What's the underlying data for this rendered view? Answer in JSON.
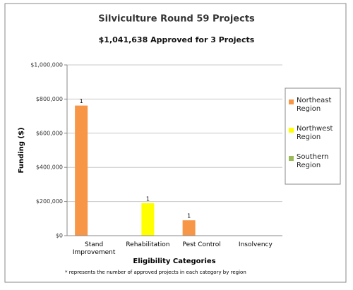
{
  "chart_data": {
    "type": "bar",
    "title": "Silviculture Round 59 Projects",
    "subtitle": "$1,041,638 Approved for 3 Projects",
    "x_label": "Eligibility Categories",
    "y_label": "Funding ($)",
    "footnote": "* represents the number of approved projects in each category by region",
    "categories": [
      "Stand Improvement",
      "Rehabilitation",
      "Pest Control",
      "Insolvency"
    ],
    "series": [
      {
        "name": "Northeast Region",
        "color": "#f79646",
        "values": [
          762000,
          0,
          90000,
          0
        ],
        "counts": [
          1,
          null,
          1,
          null
        ]
      },
      {
        "name": "Northwest Region",
        "color": "#ffff00",
        "values": [
          0,
          190000,
          0,
          0
        ],
        "counts": [
          null,
          1,
          null,
          null
        ]
      },
      {
        "name": "Southern Region",
        "color": "#9bbb59",
        "values": [
          0,
          0,
          0,
          0
        ],
        "counts": [
          null,
          null,
          null,
          null
        ]
      }
    ],
    "ylim": [
      0,
      1000000
    ],
    "yticks": [
      {
        "value": 0,
        "label": "$0"
      },
      {
        "value": 200000,
        "label": "$200,000"
      },
      {
        "value": 400000,
        "label": "$400,000"
      },
      {
        "value": 600000,
        "label": "$600,000"
      },
      {
        "value": 800000,
        "label": "$800,000"
      },
      {
        "value": 1000000,
        "label": "$1,000,000"
      }
    ],
    "grid": true,
    "legend": "right"
  }
}
